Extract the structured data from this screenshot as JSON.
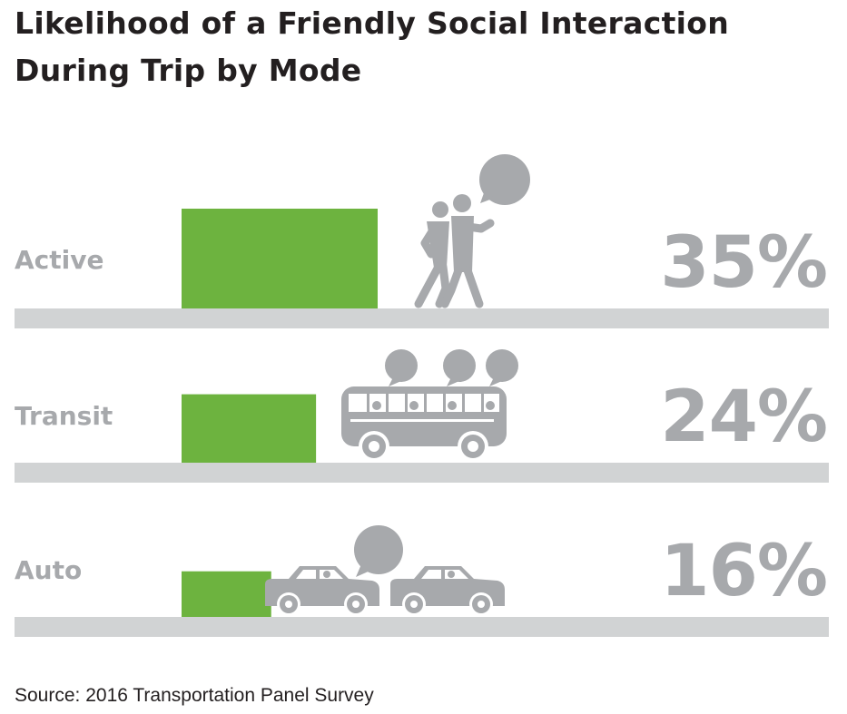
{
  "title_line1": "Likelihood of a Friendly Social Interaction",
  "title_line2": "During Trip by Mode",
  "source": "Source: 2016 Transportation Panel Survey",
  "chart_data": {
    "type": "bar",
    "orientation": "horizontal",
    "title": "Likelihood of a Friendly Social Interaction During Trip by Mode",
    "categories": [
      "Active",
      "Transit",
      "Auto"
    ],
    "values": [
      35,
      24,
      16
    ],
    "value_labels": [
      "35%",
      "24%",
      "16%"
    ],
    "unit": "%",
    "icons": [
      "walking-people-icon",
      "bus-icon",
      "cars-icon"
    ],
    "colors": {
      "bar": "#6db33f",
      "track": "#d1d3d4",
      "label": "#a7a9ac",
      "icon": "#a7a9ac",
      "title": "#231f20"
    }
  }
}
